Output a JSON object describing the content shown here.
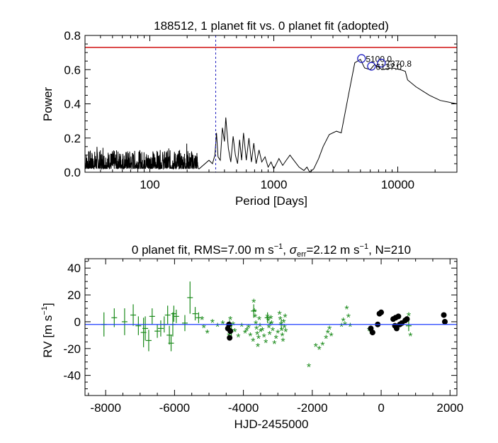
{
  "chart_data": [
    {
      "type": "line",
      "title": "188512,  1 planet fit vs. 0 planet fit (adopted)",
      "xlabel": "Period [Days]",
      "ylabel": "Power",
      "xscale": "log",
      "xlim": [
        30,
        30000
      ],
      "ylim": [
        0,
        0.8
      ],
      "xticks": [
        100,
        1000,
        10000
      ],
      "xtick_labels": [
        "100",
        "1000",
        "10000"
      ],
      "yticks": [
        0,
        0.2,
        0.4,
        0.6,
        0.8
      ],
      "ytick_labels": [
        "0.0",
        "0.2",
        "0.4",
        "0.6",
        "0.8"
      ],
      "threshold": {
        "value": 0.73,
        "color": "#d01010"
      },
      "marker_period": {
        "value": 340,
        "color": "#2020c0"
      },
      "series": [
        {
          "name": "periodogram",
          "color": "#000000",
          "anchors": [
            [
              250,
              0.02
            ],
            [
              300,
              0.07
            ],
            [
              320,
              0.05
            ],
            [
              335,
              0.1
            ],
            [
              345,
              0.23
            ],
            [
              355,
              0.09
            ],
            [
              370,
              0.07
            ],
            [
              385,
              0.26
            ],
            [
              400,
              0.18
            ],
            [
              410,
              0.32
            ],
            [
              430,
              0.14
            ],
            [
              450,
              0.06
            ],
            [
              470,
              0.21
            ],
            [
              490,
              0.1
            ],
            [
              510,
              0.05
            ],
            [
              530,
              0.19
            ],
            [
              550,
              0.07
            ],
            [
              570,
              0.23
            ],
            [
              600,
              0.07
            ],
            [
              630,
              0.2
            ],
            [
              660,
              0.06
            ],
            [
              690,
              0.17
            ],
            [
              720,
              0.05
            ],
            [
              760,
              0.13
            ],
            [
              800,
              0.06
            ],
            [
              850,
              0.09
            ],
            [
              900,
              0.03
            ],
            [
              950,
              0.06
            ],
            [
              1000,
              0.02
            ],
            [
              1050,
              0.05
            ],
            [
              1100,
              0.08
            ],
            [
              1180,
              0.04
            ],
            [
              1260,
              0.07
            ],
            [
              1350,
              0.1
            ],
            [
              1450,
              0.07
            ],
            [
              1600,
              0.03
            ],
            [
              1750,
              0.01
            ],
            [
              1850,
              0.03
            ],
            [
              1950,
              0.0
            ],
            [
              2100,
              0.02
            ],
            [
              2300,
              0.08
            ],
            [
              2500,
              0.15
            ],
            [
              2800,
              0.22
            ],
            [
              3200,
              0.24
            ],
            [
              3500,
              0.23
            ],
            [
              4000,
              0.45
            ],
            [
              4500,
              0.64
            ],
            [
              5000,
              0.66
            ],
            [
              5400,
              0.61
            ],
            [
              6000,
              0.6
            ],
            [
              6500,
              0.63
            ],
            [
              7500,
              0.6
            ],
            [
              9000,
              0.61
            ],
            [
              10500,
              0.6
            ],
            [
              11500,
              0.59
            ],
            [
              12000,
              0.54
            ],
            [
              14000,
              0.5
            ],
            [
              18000,
              0.45
            ],
            [
              22000,
              0.42
            ],
            [
              30000,
              0.4
            ]
          ]
        }
      ],
      "peaks": [
        {
          "period": 5100,
          "power": 0.665,
          "label": "5100.0"
        },
        {
          "period": 7370,
          "power": 0.638,
          "label": "7370.8"
        },
        {
          "period": 6137,
          "power": 0.62,
          "label": "6137.0"
        }
      ]
    },
    {
      "type": "scatter",
      "title_parts": {
        "lead": "0 planet fit, RMS=7.00 m s",
        "rms_exp": "−1",
        "mid": ", ",
        "sigma": "σ",
        "err_sub": "err",
        "mid2": "=2.12 m s",
        "err_exp": "−1",
        "tail": ", N=210"
      },
      "xlabel": "HJD-2455000",
      "ylabel_parts": {
        "lead": "RV [m s",
        "exp": "−1",
        "tail": "]"
      },
      "xlim": [
        -8600,
        2200
      ],
      "ylim": [
        -55,
        47
      ],
      "xticks": [
        -8000,
        -6000,
        -4000,
        -2000,
        0,
        2000
      ],
      "xtick_labels": [
        "-8000",
        "-6000",
        "-4000",
        "-2000",
        "0",
        "2000"
      ],
      "yticks": [
        -40,
        -20,
        0,
        20,
        40
      ],
      "ytick_labels": [
        "-40",
        "-20",
        "0",
        "20",
        "40"
      ],
      "fit_line": {
        "value": -2,
        "color": "#1e3cff"
      },
      "colors": {
        "green": "#1a8a1a",
        "black": "#000000",
        "axis": "#000000"
      },
      "errorbar_points": [
        [
          -8050,
          -2,
          9
        ],
        [
          -7750,
          3,
          7
        ],
        [
          -7450,
          0,
          10
        ],
        [
          -7200,
          5,
          8
        ],
        [
          -7050,
          -3,
          7
        ],
        [
          -6850,
          -5,
          9
        ],
        [
          -6750,
          -14,
          8
        ],
        [
          -6900,
          -8,
          11
        ],
        [
          -6650,
          4,
          6
        ],
        [
          -6500,
          -7,
          5
        ],
        [
          -6400,
          -5,
          6
        ],
        [
          -6300,
          -2,
          6
        ],
        [
          -6200,
          5,
          7
        ],
        [
          -6150,
          -10,
          7
        ],
        [
          -6100,
          -16,
          6
        ],
        [
          -6050,
          -2,
          9
        ],
        [
          -5950,
          4,
          5
        ],
        [
          -5700,
          -1,
          6
        ],
        [
          -5550,
          18,
          12
        ],
        [
          -5400,
          6,
          5
        ],
        [
          -5300,
          3,
          4
        ],
        [
          -3300,
          3,
          4
        ],
        [
          -2900,
          -2,
          4
        ],
        [
          -4400,
          -3,
          4
        ],
        [
          -4350,
          -6,
          5
        ],
        [
          -3700,
          8,
          5
        ],
        [
          800,
          -3,
          4
        ],
        [
          -6020,
          6,
          6
        ]
      ],
      "star_points": [
        [
          -5200,
          2
        ],
        [
          -5150,
          -4
        ],
        [
          -5050,
          -8
        ],
        [
          -4900,
          0
        ],
        [
          -4750,
          -3
        ],
        [
          -4600,
          -1
        ],
        [
          -4450,
          -5
        ],
        [
          -4420,
          -10
        ],
        [
          -4380,
          2
        ],
        [
          -4300,
          -2
        ],
        [
          -4250,
          -7
        ],
        [
          -4150,
          -11
        ],
        [
          -4050,
          -3
        ],
        [
          -3950,
          -8
        ],
        [
          -3900,
          -6
        ],
        [
          -3850,
          -4
        ],
        [
          -3800,
          -10
        ],
        [
          -3720,
          -14
        ],
        [
          -3700,
          15
        ],
        [
          -3680,
          8
        ],
        [
          -3660,
          4
        ],
        [
          -3640,
          -1
        ],
        [
          -3620,
          -5
        ],
        [
          -3600,
          -9
        ],
        [
          -3580,
          -18
        ],
        [
          -3560,
          -12
        ],
        [
          -3540,
          2
        ],
        [
          -3520,
          -3
        ],
        [
          -3500,
          -7
        ],
        [
          -3450,
          -6
        ],
        [
          -3400,
          -11
        ],
        [
          -3350,
          -15
        ],
        [
          -3300,
          4
        ],
        [
          -3280,
          1
        ],
        [
          -3260,
          -4
        ],
        [
          -3240,
          -9
        ],
        [
          -3220,
          -2
        ],
        [
          -3200,
          3
        ],
        [
          -3180,
          -1
        ],
        [
          -3150,
          -6
        ],
        [
          -3100,
          -16
        ],
        [
          -3050,
          -12
        ],
        [
          -3000,
          -8
        ],
        [
          -2950,
          6
        ],
        [
          -2930,
          2
        ],
        [
          -2910,
          -2
        ],
        [
          -2890,
          -6
        ],
        [
          -2870,
          -10
        ],
        [
          -2850,
          -14
        ],
        [
          -2830,
          0
        ],
        [
          -2810,
          -4
        ],
        [
          -2790,
          4
        ],
        [
          -2770,
          -7
        ],
        [
          -2100,
          -33
        ],
        [
          -1900,
          -18
        ],
        [
          -1800,
          -20
        ],
        [
          -1700,
          -17
        ],
        [
          -1600,
          -12
        ],
        [
          -1550,
          -8
        ],
        [
          -1500,
          -5
        ],
        [
          -1450,
          -10
        ],
        [
          -1150,
          -3
        ],
        [
          -1100,
          1
        ],
        [
          -1050,
          -2
        ],
        [
          -1000,
          10
        ],
        [
          -950,
          4
        ],
        [
          -900,
          -3
        ],
        [
          -350,
          -6
        ],
        [
          -300,
          -8
        ],
        [
          800,
          5
        ],
        [
          850,
          -10
        ]
      ],
      "dot_points": [
        [
          -4450,
          -5
        ],
        [
          -4400,
          -12
        ],
        [
          -4420,
          -2
        ],
        [
          -4380,
          -7
        ],
        [
          -300,
          -5
        ],
        [
          -250,
          -8
        ],
        [
          -50,
          6
        ],
        [
          0,
          7
        ],
        [
          -100,
          -2
        ],
        [
          350,
          2
        ],
        [
          400,
          -3
        ],
        [
          420,
          3
        ],
        [
          450,
          -5
        ],
        [
          500,
          4
        ],
        [
          540,
          -2
        ],
        [
          600,
          -1
        ],
        [
          700,
          1
        ],
        [
          750,
          2
        ],
        [
          1820,
          5
        ],
        [
          1850,
          0
        ]
      ]
    }
  ]
}
